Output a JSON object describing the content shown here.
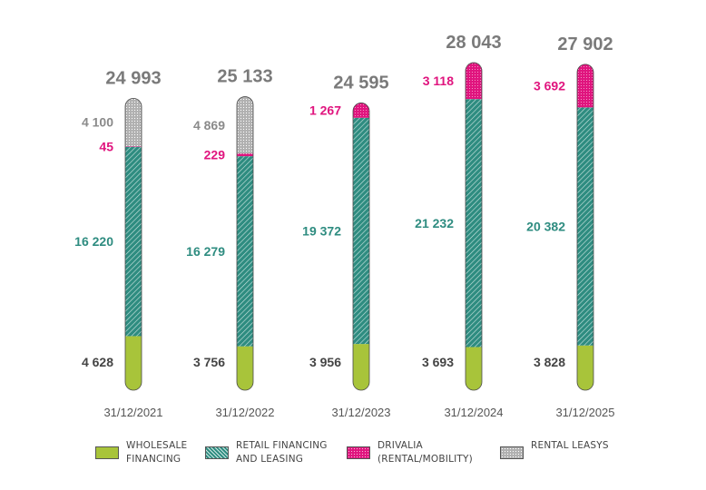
{
  "chart_data": {
    "type": "bar",
    "stacked": true,
    "categories": [
      "31/12/2021",
      "31/12/2022",
      "31/12/2023",
      "31/12/2024",
      "31/12/2025"
    ],
    "totals": [
      "24 993",
      "25 133",
      "24 595",
      "28 043",
      "27 902"
    ],
    "series": [
      {
        "name": "WHOLESALE FINANCING",
        "color": "#a8c43a",
        "values": [
          4628,
          3756,
          3956,
          3693,
          3828
        ],
        "labels": [
          "4 628",
          "3 756",
          "3 956",
          "3 693",
          "3 828"
        ]
      },
      {
        "name": "RETAIL FINANCING AND LEASING",
        "color": "#2e8c80",
        "values": [
          16220,
          16279,
          19372,
          21232,
          20382
        ],
        "labels": [
          "16 220",
          "16 279",
          "19 372",
          "21 232",
          "20 382"
        ]
      },
      {
        "name": "DRIVALIA (RENTAL/MOBILITY)",
        "color": "#e0147e",
        "values": [
          45,
          229,
          1267,
          3118,
          3692
        ],
        "labels": [
          "45",
          "229",
          "1 267",
          "3 118",
          "3 692"
        ]
      },
      {
        "name": "RENTAL LEASYS",
        "color": "#b0b0b0",
        "values": [
          4100,
          4869,
          0,
          0,
          0
        ],
        "labels": [
          "4 100",
          "4 869",
          "",
          "",
          ""
        ]
      }
    ],
    "grid": false,
    "legend_position": "bottom"
  },
  "legend": [
    {
      "label": "WHOLESALE\nFINANCING",
      "color": "#a8c43a"
    },
    {
      "label": "RETAIL FINANCING\nAND LEASING",
      "color": "#2e8c80"
    },
    {
      "label": "DRIVALIA\n(RENTAL/MOBILITY)",
      "color": "#e0147e"
    },
    {
      "label": "RENTAL LEASYS",
      "color": "#b0b0b0"
    }
  ],
  "colors": {
    "total_text": "#7a7a7a",
    "date_text": "#555555",
    "wholesale_text": "#444444"
  }
}
